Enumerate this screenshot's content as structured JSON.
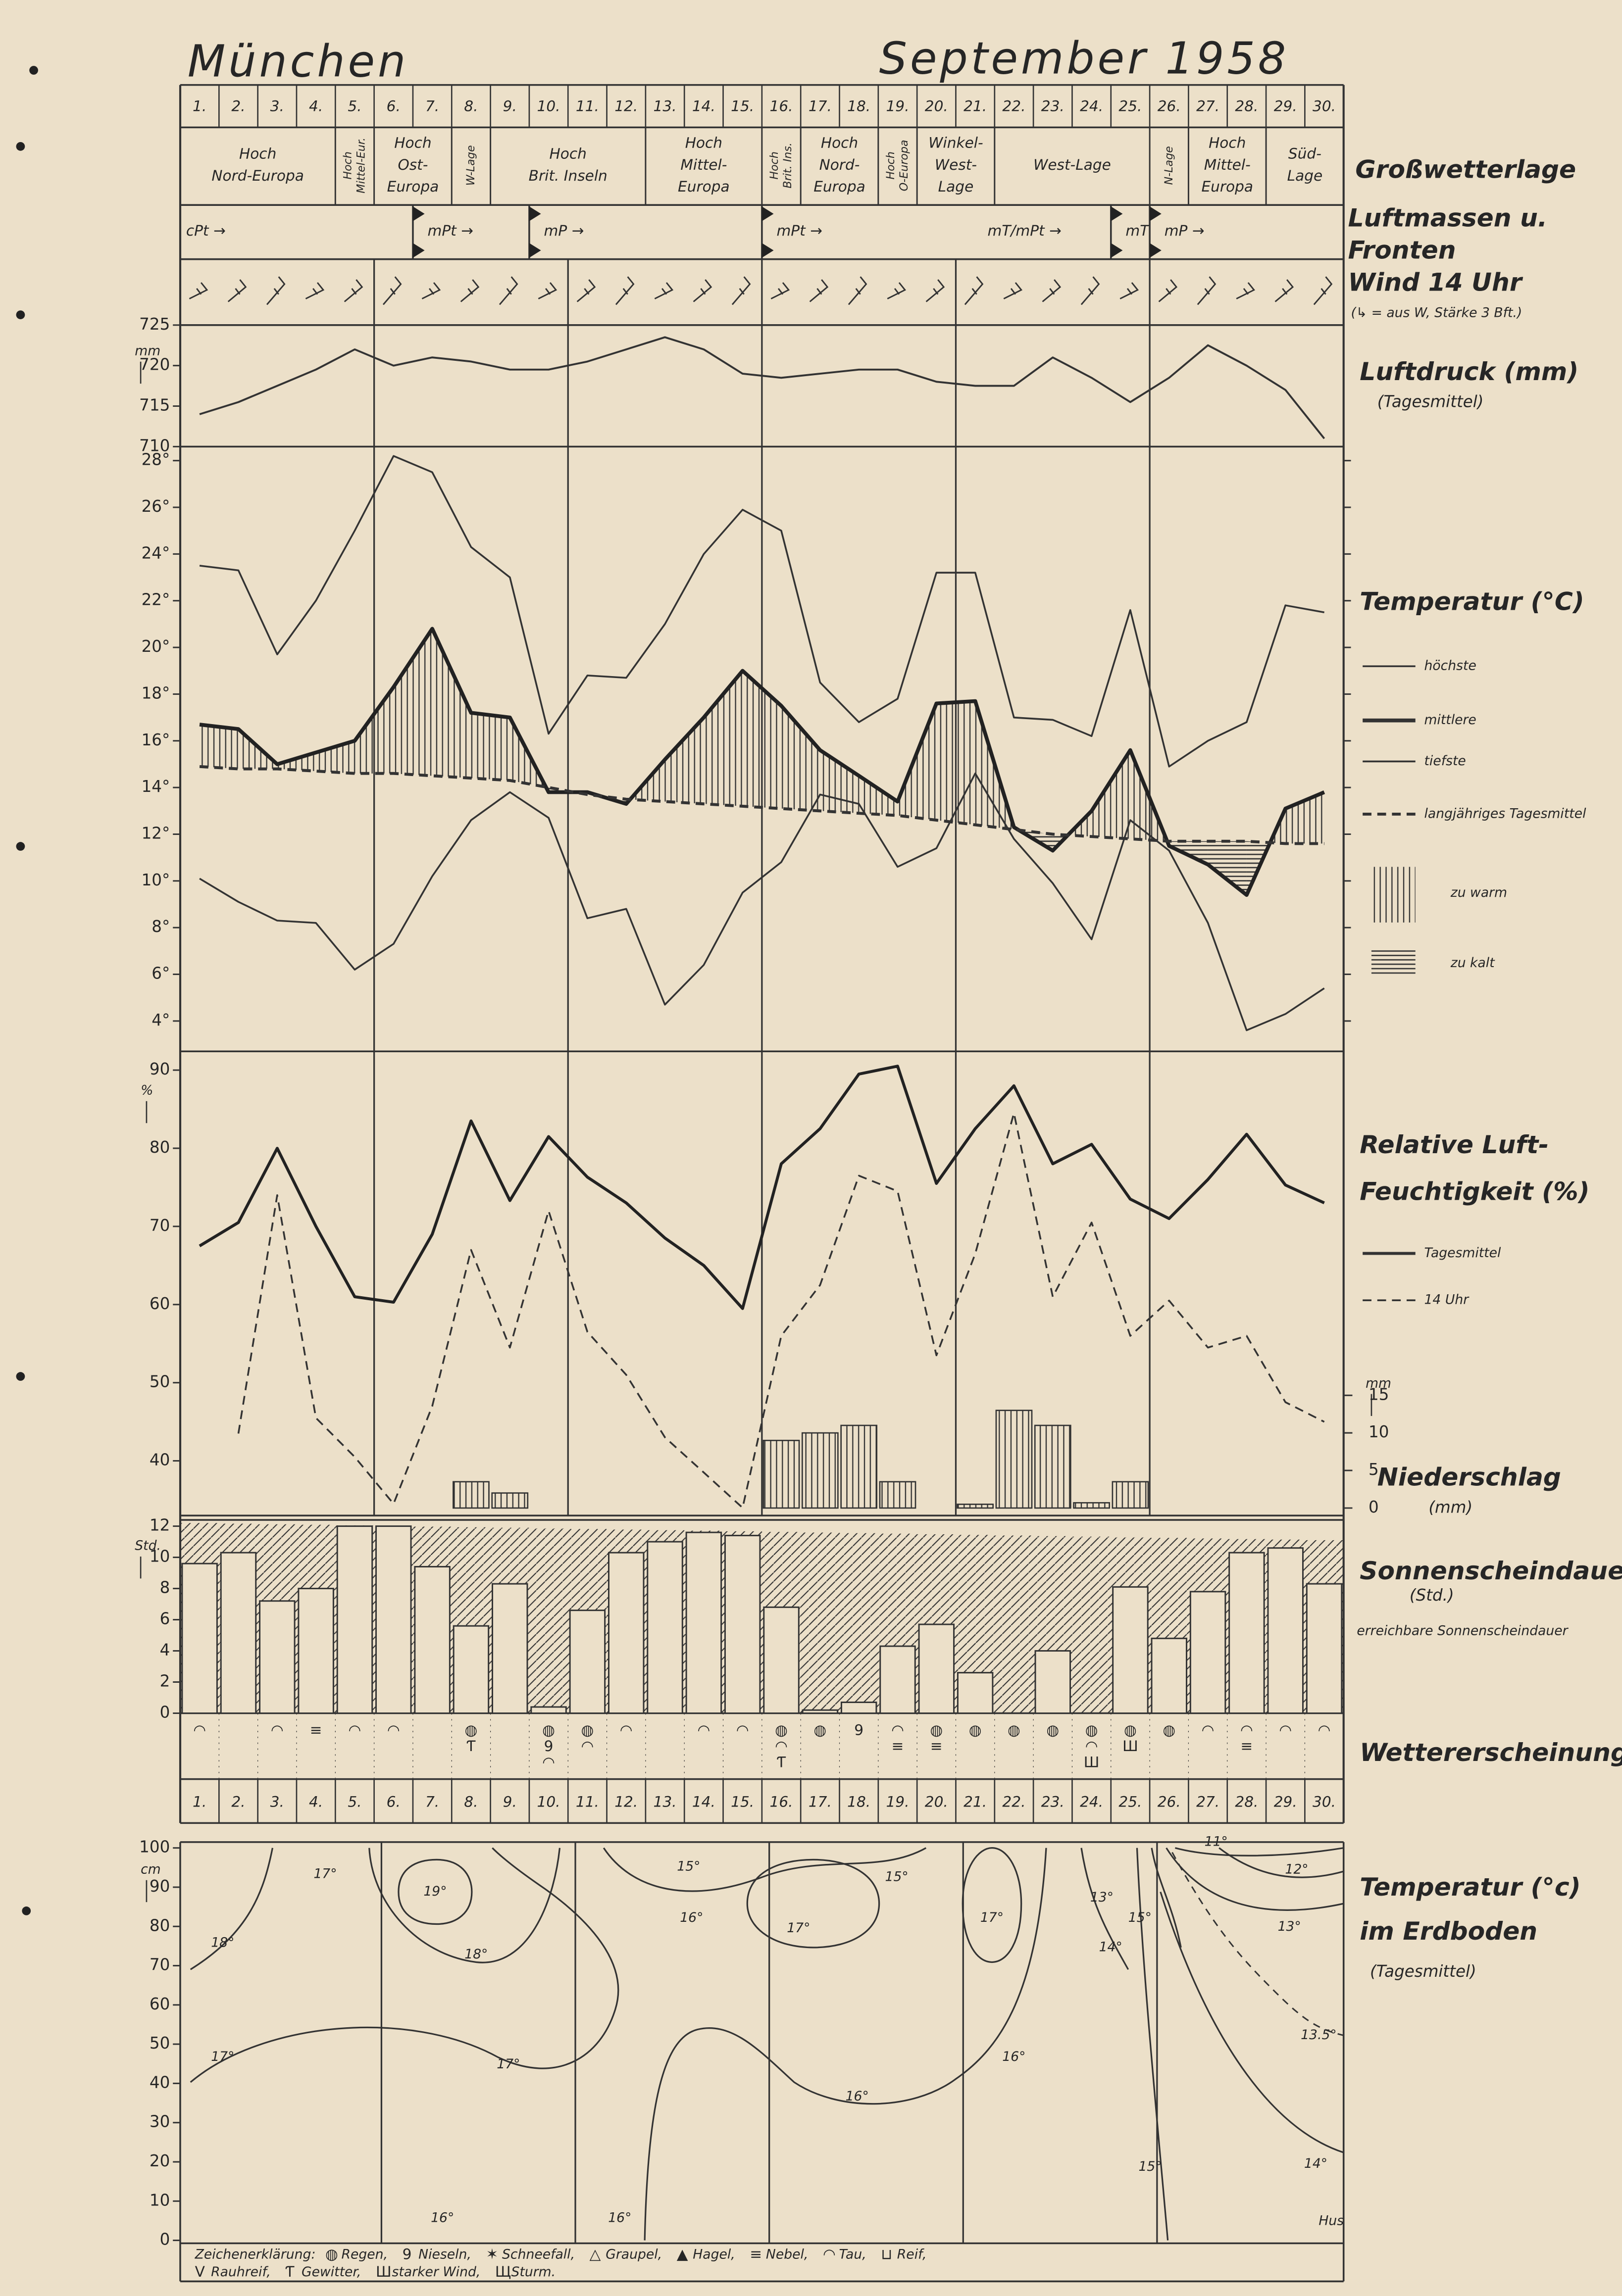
{
  "header": {
    "place": "München",
    "date": "September 1958"
  },
  "days": [
    "1.",
    "2.",
    "3.",
    "4.",
    "5.",
    "6.",
    "7.",
    "8.",
    "9.",
    "10.",
    "11.",
    "12.",
    "13.",
    "14.",
    "15.",
    "16.",
    "17.",
    "18.",
    "19.",
    "20.",
    "21.",
    "22.",
    "23.",
    "24.",
    "25.",
    "26.",
    "27.",
    "28.",
    "29.",
    "30."
  ],
  "grosswetterlage": {
    "label": "Großwetterlage",
    "groups": [
      {
        "days": [
          1,
          4
        ],
        "lines": [
          "Hoch",
          "Nord-Europa"
        ]
      },
      {
        "days": [
          5,
          5
        ],
        "lines": [
          "Hoch",
          "Mittel-Eur."
        ],
        "vertical": true
      },
      {
        "days": [
          6,
          7
        ],
        "lines": [
          "Hoch",
          "Ost-",
          "Europa"
        ]
      },
      {
        "days": [
          8,
          8
        ],
        "lines": [
          "W-Lage"
        ],
        "vertical": true
      },
      {
        "days": [
          9,
          12
        ],
        "lines": [
          "Hoch",
          "Brit. Inseln"
        ]
      },
      {
        "days": [
          13,
          15
        ],
        "lines": [
          "Hoch",
          "Mittel-",
          "Europa"
        ]
      },
      {
        "days": [
          16,
          16
        ],
        "lines": [
          "Hoch",
          "Brit. Ins."
        ],
        "vertical": true
      },
      {
        "days": [
          17,
          18
        ],
        "lines": [
          "Hoch",
          "Nord-",
          "Europa"
        ]
      },
      {
        "days": [
          19,
          19
        ],
        "lines": [
          "Hoch",
          "O-Europa"
        ],
        "vertical": true
      },
      {
        "days": [
          20,
          21
        ],
        "lines": [
          "Winkel-",
          "West-",
          "Lage"
        ]
      },
      {
        "days": [
          22,
          25
        ],
        "lines": [
          "West-Lage"
        ]
      },
      {
        "days": [
          26,
          26
        ],
        "lines": [
          "N-Lage"
        ],
        "vertical": true
      },
      {
        "days": [
          27,
          28
        ],
        "lines": [
          "Hoch",
          "Mittel-",
          "Europa"
        ]
      },
      {
        "days": [
          29,
          30
        ],
        "lines": [
          "Süd-",
          "Lage"
        ]
      }
    ]
  },
  "luftmassen": {
    "label_lines": [
      "Luftmassen u.",
      "Fronten"
    ],
    "segments": [
      {
        "days": [
          1,
          6
        ],
        "text": "cPt →"
      },
      {
        "days": [
          7,
          9
        ],
        "text": "mPt →",
        "front": true
      },
      {
        "days": [
          10,
          15
        ],
        "text": "mP →",
        "front": true
      },
      {
        "days": [
          16,
          19
        ],
        "text": "mPt →",
        "front": true
      },
      {
        "days": [
          20,
          24
        ],
        "text": "mT/mPt →"
      },
      {
        "days": [
          25,
          25
        ],
        "text": "mT",
        "front": true
      },
      {
        "days": [
          26,
          30
        ],
        "text": "mP →",
        "front": true
      }
    ]
  },
  "wind": {
    "label": "Wind 14 Uhr",
    "note": "(↳ = aus W, Stärke 3 Bft.)"
  },
  "chart_data": [
    {
      "type": "line",
      "label_lines": [
        "Luftdruck (mm)",
        "(Tagesmittel)"
      ],
      "unit": "mm",
      "ylim": [
        710,
        725
      ],
      "yticks": [
        710,
        715,
        720,
        725
      ],
      "series": [
        {
          "name": "Luftdruck",
          "color": "#333",
          "width": 1.3,
          "values": [
            714,
            715.5,
            717.5,
            719.5,
            722,
            720,
            721,
            720.5,
            719.5,
            719.5,
            720.5,
            722,
            723.5,
            722,
            719,
            718.5,
            719,
            719.5,
            719.5,
            718,
            717.5,
            717.5,
            721,
            718.5,
            715.5,
            718.5,
            722.5,
            720,
            717,
            711
          ]
        }
      ]
    },
    {
      "type": "line",
      "label_lines": [
        "Temperatur (°C)"
      ],
      "ylim": [
        2.7,
        28.6
      ],
      "yticks": [
        {
          "value": 4,
          "label": "4°"
        },
        {
          "value": 6,
          "label": "6°"
        },
        {
          "value": 8,
          "label": "8°"
        },
        {
          "value": 10,
          "label": "10°"
        },
        {
          "value": 12,
          "label": "12°"
        },
        {
          "value": 14,
          "label": "14°"
        },
        {
          "value": 16,
          "label": "16°"
        },
        {
          "value": 18,
          "label": "18°"
        },
        {
          "value": 20,
          "label": "20°"
        },
        {
          "value": 22,
          "label": "22°"
        },
        {
          "value": 24,
          "label": "24°"
        },
        {
          "value": 26,
          "label": "26°"
        },
        {
          "value": 28,
          "label": "28°"
        }
      ],
      "anomaly": {
        "series": 1,
        "reference": 3,
        "warm_label": "zu warm",
        "cold_label": "zu kalt"
      },
      "series": [
        {
          "name": "höchste",
          "color": "#333",
          "width": 1.2,
          "values": [
            23.5,
            23.3,
            19.7,
            22,
            25,
            28.2,
            27.5,
            24.3,
            23,
            16.3,
            18.8,
            18.7,
            21,
            24,
            25.9,
            25,
            18.5,
            16.8,
            17.8,
            23.2,
            23.2,
            17,
            16.9,
            16.2,
            21.6,
            14.9,
            16,
            16.8,
            21.8,
            21.5
          ]
        },
        {
          "name": "mittlere",
          "color": "#222",
          "width": 2.6,
          "values": [
            16.7,
            16.5,
            15,
            15.5,
            16,
            18.3,
            20.8,
            17.2,
            17,
            13.8,
            13.8,
            13.3,
            15.2,
            17,
            19,
            17.5,
            15.6,
            14.5,
            13.4,
            17.6,
            17.7,
            12.3,
            11.3,
            13,
            15.6,
            11.5,
            10.7,
            9.4,
            13.1,
            13.8
          ]
        },
        {
          "name": "tiefste",
          "color": "#333",
          "width": 1.2,
          "values": [
            10.1,
            9.1,
            8.3,
            8.2,
            6.2,
            7.3,
            10.2,
            12.6,
            13.8,
            12.7,
            8.4,
            8.8,
            4.7,
            6.4,
            9.5,
            10.8,
            13.7,
            13.3,
            10.6,
            11.4,
            14.6,
            11.8,
            9.9,
            7.5,
            12.6,
            11.3,
            8.2,
            3.6,
            4.3,
            5.4
          ]
        },
        {
          "name": "langjähriges Tagesmittel",
          "color": "#333",
          "width": 2,
          "dashed": true,
          "values": [
            14.9,
            14.8,
            14.8,
            14.7,
            14.6,
            14.6,
            14.5,
            14.4,
            14.3,
            14,
            13.7,
            13.5,
            13.4,
            13.3,
            13.2,
            13.1,
            13,
            12.9,
            12.8,
            12.6,
            12.4,
            12.2,
            12,
            11.9,
            11.8,
            11.7,
            11.7,
            11.7,
            11.6,
            11.6
          ]
        }
      ]
    },
    {
      "type": "line",
      "label_lines": [
        "Relative Luft-",
        "Feuchtigkeit (%)"
      ],
      "unit": "%",
      "ylim": [
        33,
        92.4
      ],
      "yticks": [
        40,
        50,
        60,
        70,
        80,
        90
      ],
      "series": [
        {
          "name": "Tagesmittel",
          "color": "#222",
          "width": 2,
          "values": [
            67.5,
            70.5,
            80,
            70,
            61,
            60.3,
            69,
            83.5,
            73.3,
            81.5,
            76.3,
            73,
            68.5,
            65,
            59.5,
            78,
            82.5,
            89.5,
            90.5,
            75.5,
            82.5,
            88,
            78,
            80.5,
            73.5,
            71,
            76,
            81.8,
            75.3,
            73
          ]
        },
        {
          "name": "14 Uhr",
          "color": "#333",
          "width": 1.2,
          "dashed": true,
          "values": [
            null,
            43.5,
            74,
            45.5,
            40.5,
            34.5,
            47,
            67,
            54.5,
            72,
            56.5,
            51,
            43,
            38.5,
            34,
            56,
            62.5,
            76.5,
            74.5,
            53.5,
            66.5,
            84.5,
            61,
            70.5,
            56,
            60.5,
            54.5,
            56,
            47.5,
            45
          ]
        }
      ]
    },
    {
      "type": "bar",
      "label_lines": [
        "Niederschlag",
        "(mm)"
      ],
      "unit": "mm",
      "axis_side": "right",
      "ylim": [
        -1,
        60.8
      ],
      "yticks": [
        0,
        5,
        10,
        15
      ],
      "color": "#333",
      "values": [
        0,
        0,
        0,
        0,
        0,
        0,
        0,
        3.5,
        2,
        0,
        0,
        0,
        0,
        0,
        0,
        9,
        10,
        11,
        3.5,
        0,
        0.5,
        13,
        11,
        0.7,
        3.5,
        0,
        0,
        0,
        0,
        0
      ]
    },
    {
      "type": "sunshine",
      "label_lines": [
        "Sonnenscheindauer",
        "(Std.)"
      ],
      "unit": "Std.",
      "ylim": [
        0,
        12.4
      ],
      "yticks": [
        0,
        2,
        4,
        6,
        8,
        10,
        12
      ],
      "series": [
        {
          "name": "erreichbare Sonnenscheindauer",
          "color": "#333",
          "values": [
            12.2,
            12.16,
            12.12,
            12.09,
            12.05,
            12.01,
            11.97,
            11.93,
            11.9,
            11.86,
            11.82,
            11.78,
            11.74,
            11.71,
            11.67,
            11.63,
            11.59,
            11.55,
            11.52,
            11.48,
            11.44,
            11.4,
            11.36,
            11.33,
            11.29,
            11.25,
            11.21,
            11.17,
            11.14,
            11.1
          ]
        },
        {
          "color": "#333",
          "values": [
            9.6,
            10.3,
            7.2,
            8,
            12,
            12,
            9.4,
            5.6,
            8.3,
            0.4,
            6.6,
            10.3,
            11,
            11.6,
            11.4,
            6.8,
            0.2,
            0.7,
            4.3,
            5.7,
            2.6,
            0,
            4,
            0,
            8.1,
            4.8,
            7.8,
            10.3,
            10.6,
            8.3
          ]
        }
      ]
    },
    {
      "type": "contour",
      "label_lines": [
        "Temperatur (°c)",
        "im Erdboden",
        "(Tagesmittel)"
      ],
      "unit": "cm",
      "ylim": [
        0,
        100
      ],
      "yticks": [
        0,
        10,
        20,
        30,
        40,
        50,
        60,
        70,
        80,
        90,
        100
      ],
      "labels": [
        "17°",
        "19°",
        "18°",
        "18°",
        "17°",
        "17°",
        "16°",
        "16°",
        "15°",
        "16°",
        "17°",
        "15°",
        "16°",
        "16°",
        "17°",
        "13°",
        "14°",
        "15°",
        "15°",
        "11°",
        "12°",
        "13°",
        "13.5°",
        "14°"
      ],
      "signature": "Hus"
    }
  ],
  "weather": {
    "label": "Wettererscheinungen",
    "days": [
      [
        "◠"
      ],
      [],
      [
        "◠"
      ],
      [
        "≡"
      ],
      [
        "◠"
      ],
      [
        "◠"
      ],
      [],
      [
        "◍",
        "Ƭ"
      ],
      [],
      [
        "◍",
        "9",
        "◠"
      ],
      [
        "◍",
        "◠"
      ],
      [
        "◠"
      ],
      [],
      [
        "◠"
      ],
      [
        "◠"
      ],
      [
        "◍",
        "◠",
        "Ƭ"
      ],
      [
        "◍"
      ],
      [
        "9"
      ],
      [
        "◠",
        "≡"
      ],
      [
        "◍",
        "≡"
      ],
      [
        "◍"
      ],
      [
        "◍"
      ],
      [
        "◍"
      ],
      [
        "◍",
        "◠",
        "Ш"
      ],
      [
        "◍",
        "Ш"
      ],
      [
        "◍"
      ],
      [
        "◠"
      ],
      [
        "◠",
        "≡"
      ],
      [
        "◠"
      ],
      [
        "◠"
      ]
    ]
  },
  "legend": {
    "title": "Zeichenerklärung:",
    "items": [
      {
        "symbol": "◍",
        "name": "Regen,"
      },
      {
        "symbol": "9",
        "name": "Nieseln,"
      },
      {
        "symbol": "✶",
        "name": "Schneefall,"
      },
      {
        "symbol": "△",
        "name": "Graupel,"
      },
      {
        "symbol": "▲",
        "name": "Hagel,"
      },
      {
        "symbol": "≡",
        "name": "Nebel,"
      },
      {
        "symbol": "◠",
        "name": "Tau,"
      },
      {
        "symbol": "⊔",
        "name": "Reif,"
      },
      {
        "symbol": "V",
        "name": "Rauhreif,"
      },
      {
        "symbol": "Ƭ",
        "name": "Gewitter,"
      },
      {
        "symbol": "Ш",
        "name": "starker Wind,"
      },
      {
        "symbol": "Щ",
        "name": "Sturm."
      }
    ]
  }
}
